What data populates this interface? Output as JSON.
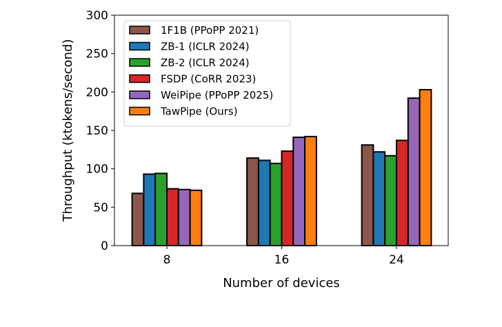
{
  "chart_data": {
    "type": "bar",
    "title": "",
    "xlabel": "Number of devices",
    "ylabel": "Throughput (ktokens/second)",
    "categories": [
      "8",
      "16",
      "24"
    ],
    "ylim": [
      0,
      300
    ],
    "yticks": [
      "0",
      "50",
      "100",
      "150",
      "200",
      "250",
      "300"
    ],
    "grid": false,
    "legend_position": "top-left",
    "series": [
      {
        "name": "1F1B (PPoPP 2021)",
        "color": "#8c564b",
        "values": [
          68,
          114,
          131
        ]
      },
      {
        "name": "ZB-1 (ICLR 2024)",
        "color": "#1f77b4",
        "values": [
          93,
          111,
          122
        ]
      },
      {
        "name": "ZB-2 (ICLR 2024)",
        "color": "#2ca02c",
        "values": [
          94,
          107,
          117
        ]
      },
      {
        "name": "FSDP (CoRR 2023)",
        "color": "#d62728",
        "values": [
          74,
          123,
          137
        ]
      },
      {
        "name": "WeiPipe (PPoPP 2025)",
        "color": "#9467bd",
        "values": [
          73,
          141,
          192
        ]
      },
      {
        "name": "TawPipe (Ours)",
        "color": "#ff7f0e",
        "values": [
          72,
          142,
          203
        ]
      }
    ]
  }
}
